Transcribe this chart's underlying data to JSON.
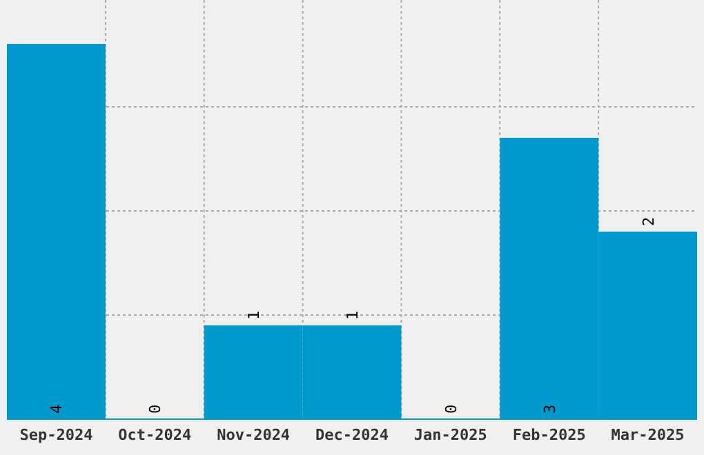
{
  "chart_data": {
    "type": "bar",
    "categories": [
      "Sep-2024",
      "Oct-2024",
      "Nov-2024",
      "Dec-2024",
      "Jan-2025",
      "Feb-2025",
      "Mar-2025"
    ],
    "values": [
      4,
      0,
      1,
      1,
      0,
      3,
      2
    ],
    "color": "#0099cc",
    "ylim": [
      0,
      4.44
    ],
    "yticks": [
      {
        "value": 1.11,
        "label": null
      },
      {
        "value": 2.22,
        "label": null
      },
      {
        "value": 3.33,
        "label": null
      }
    ],
    "grid": true,
    "tick_labels": "x",
    "data_labels": true
  }
}
